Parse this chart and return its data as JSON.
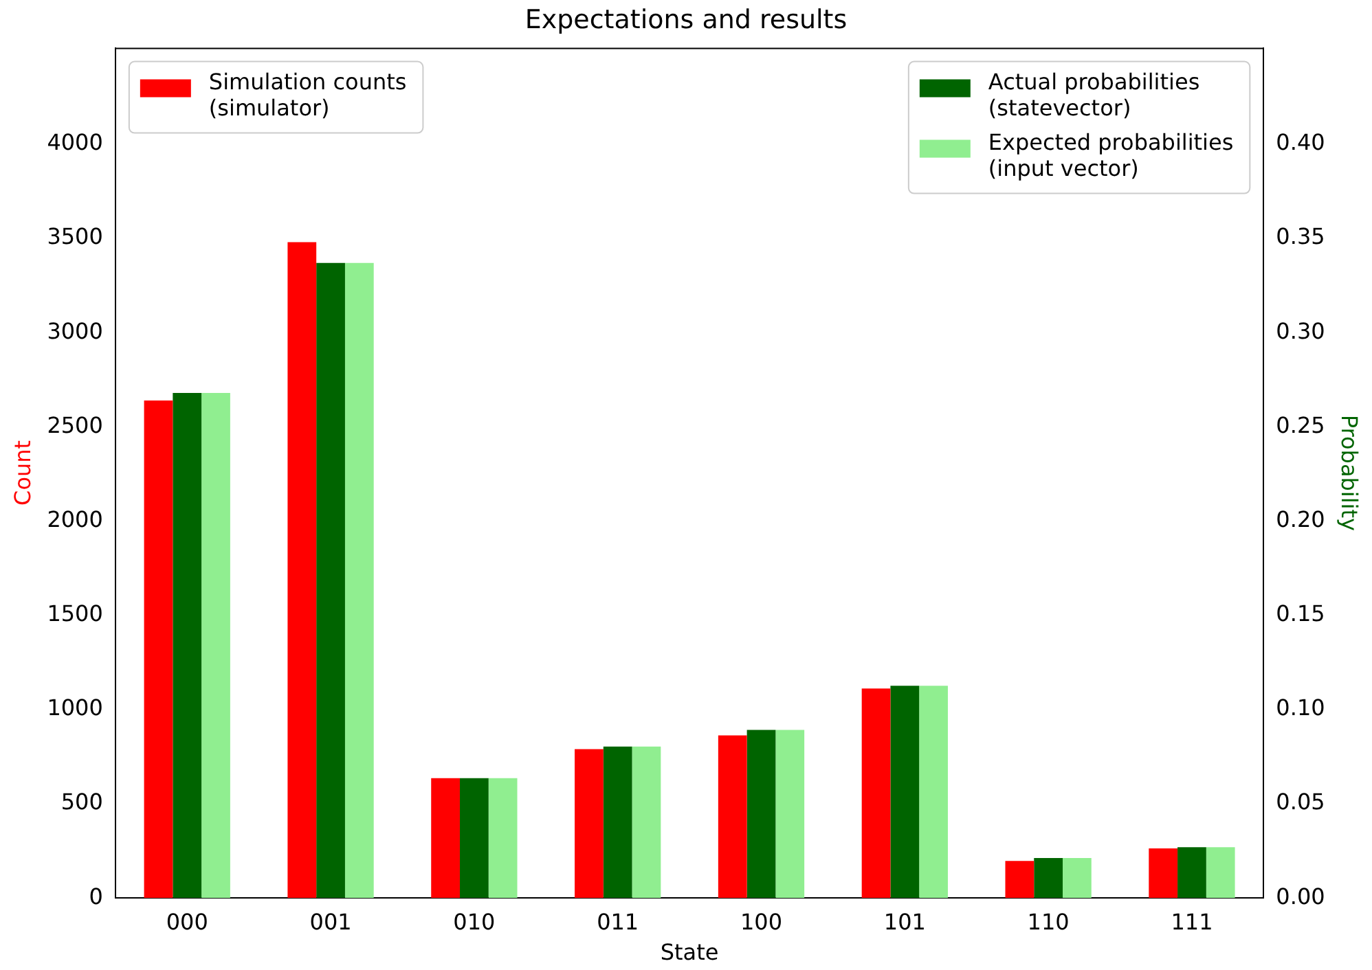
{
  "chart_data": {
    "type": "bar",
    "title": "Expectations and results",
    "xlabel": "State",
    "ylabel": "Count",
    "y2label": "Probability",
    "categories": [
      "000",
      "001",
      "010",
      "011",
      "100",
      "101",
      "110",
      "111"
    ],
    "series": [
      {
        "name": "Simulation counts\n(simulator)",
        "color": "#ff0000",
        "axis": "y",
        "values": [
          2640,
          3481,
          636,
          790,
          863,
          1112,
          197,
          263
        ]
      },
      {
        "name": "Actual probabilities\n(statevector)",
        "color": "#006400",
        "axis": "y2",
        "values": [
          0.268,
          0.337,
          0.0636,
          0.0804,
          0.0892,
          0.1126,
          0.0212,
          0.027
        ]
      },
      {
        "name": "Expected probabilities\n(input vector)",
        "color": "#90ee90",
        "axis": "y2",
        "values": [
          0.268,
          0.337,
          0.0636,
          0.0804,
          0.0892,
          0.1126,
          0.0212,
          0.027
        ]
      }
    ],
    "ylim": [
      0,
      4512
    ],
    "yticks": [
      0,
      500,
      1000,
      1500,
      2000,
      2500,
      3000,
      3500,
      4000
    ],
    "y2lim": [
      0,
      0.4512
    ],
    "y2ticks": [
      {
        "value": 0,
        "label": "0.00"
      },
      {
        "value": 0.05,
        "label": "0.05"
      },
      {
        "value": 0.1,
        "label": "0.10"
      },
      {
        "value": 0.15,
        "label": "0.15"
      },
      {
        "value": 0.2,
        "label": "0.20"
      },
      {
        "value": 0.25,
        "label": "0.25"
      },
      {
        "value": 0.3,
        "label": "0.30"
      },
      {
        "value": 0.35,
        "label": "0.35"
      },
      {
        "value": 0.4,
        "label": "0.40"
      }
    ],
    "grid": false,
    "legend": "top"
  }
}
